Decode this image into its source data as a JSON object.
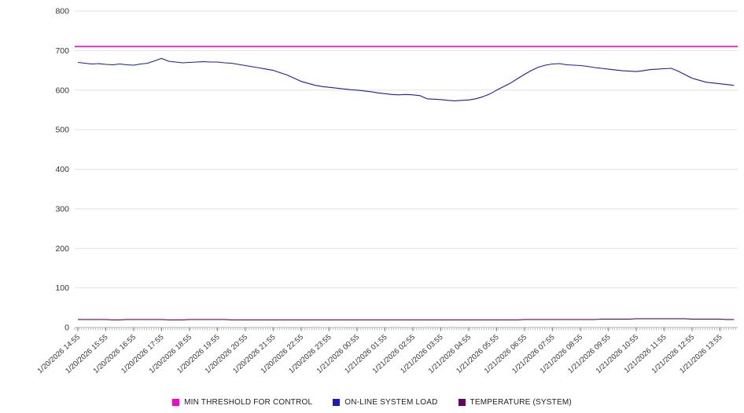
{
  "chart_data": {
    "type": "line",
    "title": "",
    "xlabel": "",
    "ylabel": "",
    "grid": "horizontal",
    "legend_position": "bottom",
    "sample_interval_minutes": 15,
    "y_axis": {
      "min": 0,
      "max": 800,
      "tick_step": 100,
      "tick_labels": [
        "0",
        "100",
        "200",
        "300",
        "400",
        "500",
        "600",
        "700",
        "800"
      ]
    },
    "x_axis": {
      "major_tick_every": "1 hour",
      "minor_tick_every": "5 minutes",
      "tick_labels": [
        "1/20/2026 14:55",
        "1/20/2026 15:55",
        "1/20/2026 16:55",
        "1/20/2026 17:55",
        "1/20/2026 18:55",
        "1/20/2026 19:55",
        "1/20/2026 20:55",
        "1/20/2026 21:55",
        "1/20/2026 22:55",
        "1/20/2026 23:55",
        "1/21/2026 00:55",
        "1/21/2026 01:55",
        "1/21/2026 02:55",
        "1/21/2026 03:55",
        "1/21/2026 04:55",
        "1/21/2026 05:55",
        "1/21/2026 06:55",
        "1/21/2026 07:55",
        "1/21/2026 08:55",
        "1/21/2026 09:55",
        "1/21/2026 10:55",
        "1/21/2026 11:55",
        "1/21/2026 12:55",
        "1/21/2026 13:55"
      ]
    },
    "series": [
      {
        "name": "MIN THRESHOLD FOR CONTROL",
        "color": "#ff00cc",
        "style": "constant",
        "value": 710
      },
      {
        "name": "ON-LINE SYSTEM LOAD",
        "color": "#1818cd",
        "style": "line",
        "values": [
          670,
          668,
          666,
          667,
          665,
          664,
          666,
          664,
          663,
          666,
          668,
          674,
          680,
          673,
          671,
          669,
          670,
          671,
          672,
          671,
          671,
          669,
          668,
          665,
          662,
          659,
          656,
          653,
          650,
          644,
          638,
          630,
          622,
          617,
          612,
          609,
          607,
          605,
          603,
          601,
          600,
          598,
          596,
          593,
          591,
          589,
          588,
          589,
          588,
          586,
          578,
          577,
          576,
          574,
          573,
          574,
          575,
          578,
          583,
          590,
          600,
          609,
          618,
          629,
          640,
          650,
          658,
          663,
          666,
          667,
          664,
          663,
          662,
          660,
          657,
          655,
          653,
          651,
          649,
          648,
          647,
          649,
          652,
          653,
          654,
          655,
          648,
          639,
          630,
          625,
          620,
          618,
          616,
          614,
          612
        ]
      },
      {
        "name": "TEMPERATURE (SYSTEM)",
        "color": "#670067",
        "style": "line",
        "values": [
          20,
          20,
          20,
          20,
          20,
          19,
          19,
          20,
          20,
          20,
          20,
          20,
          20,
          19,
          19,
          19,
          20,
          20,
          20,
          20,
          20,
          20,
          19,
          19,
          19,
          19,
          19,
          19,
          19,
          19,
          19,
          19,
          19,
          19,
          19,
          19,
          19,
          19,
          19,
          19,
          19,
          19,
          19,
          19,
          19,
          19,
          19,
          19,
          19,
          19,
          19,
          19,
          19,
          19,
          19,
          19,
          19,
          19,
          19,
          19,
          19,
          19,
          19,
          19,
          20,
          20,
          20,
          20,
          20,
          20,
          20,
          20,
          20,
          20,
          20,
          21,
          21,
          21,
          21,
          21,
          22,
          22,
          22,
          22,
          22,
          22,
          22,
          22,
          21,
          21,
          21,
          21,
          21,
          20,
          20
        ]
      }
    ]
  }
}
